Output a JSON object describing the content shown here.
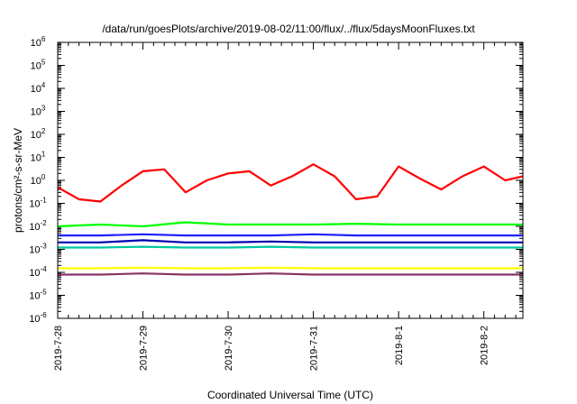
{
  "chart_data": {
    "type": "line",
    "title": "/data/run/goesPlots/archive/2019-08-02/11:00/flux/../flux/5daysMoonFluxes.txt",
    "xlabel": "Coordinated Universal Time (UTC)",
    "ylabel": "protons/cm²-s-sr-MeV",
    "yscale": "log",
    "ylim": [
      1e-06,
      1000000.0
    ],
    "y_tick_labels": [
      {
        "base": "10",
        "exp": "-6"
      },
      {
        "base": "10",
        "exp": "-5"
      },
      {
        "base": "10",
        "exp": "-4"
      },
      {
        "base": "10",
        "exp": "-3"
      },
      {
        "base": "10",
        "exp": "-2"
      },
      {
        "base": "10",
        "exp": "-1"
      },
      {
        "base": "10",
        "exp": "0"
      },
      {
        "base": "10",
        "exp": "1"
      },
      {
        "base": "10",
        "exp": "2"
      },
      {
        "base": "10",
        "exp": "3"
      },
      {
        "base": "10",
        "exp": "4"
      },
      {
        "base": "10",
        "exp": "5"
      },
      {
        "base": "10",
        "exp": "6"
      }
    ],
    "x_tick_labels": [
      "2019-7-28",
      "2019-7-29",
      "2019-7-30",
      "2019-7-31",
      "2019-8-1",
      "2019-8-2"
    ],
    "xlim": [
      "2019-07-28 00:00",
      "2019-08-02 11:00"
    ],
    "grid": false,
    "legend": "none",
    "series": [
      {
        "color": "#ff0000",
        "x": [
          "2019-07-28 00:00",
          "2019-07-28 06:00",
          "2019-07-28 12:00",
          "2019-07-28 18:00",
          "2019-07-29 00:00",
          "2019-07-29 06:00",
          "2019-07-29 12:00",
          "2019-07-29 18:00",
          "2019-07-30 00:00",
          "2019-07-30 06:00",
          "2019-07-30 12:00",
          "2019-07-30 18:00",
          "2019-07-31 00:00",
          "2019-07-31 06:00",
          "2019-07-31 12:00",
          "2019-07-31 18:00",
          "2019-08-01 00:00",
          "2019-08-01 06:00",
          "2019-08-01 12:00",
          "2019-08-01 18:00",
          "2019-08-02 00:00",
          "2019-08-02 06:00",
          "2019-08-02 11:00"
        ],
        "y": [
          0.5,
          0.15,
          0.12,
          0.6,
          2.5,
          3.0,
          0.3,
          1.0,
          2.0,
          2.5,
          0.6,
          1.5,
          5.0,
          1.5,
          0.15,
          0.2,
          4.0,
          1.2,
          0.4,
          1.5,
          4.0,
          1.0,
          1.5
        ]
      },
      {
        "color": "#00ff00",
        "x": [
          "2019-07-28 00:00",
          "2019-07-28 12:00",
          "2019-07-29 00:00",
          "2019-07-29 12:00",
          "2019-07-30 00:00",
          "2019-07-30 12:00",
          "2019-07-31 00:00",
          "2019-07-31 12:00",
          "2019-08-01 00:00",
          "2019-08-01 12:00",
          "2019-08-02 00:00",
          "2019-08-02 11:00"
        ],
        "y": [
          0.01,
          0.012,
          0.01,
          0.015,
          0.012,
          0.012,
          0.012,
          0.013,
          0.012,
          0.012,
          0.012,
          0.012
        ]
      },
      {
        "color": "#00c8a0",
        "x": [
          "2019-07-28 00:00",
          "2019-07-28 12:00",
          "2019-07-29 00:00",
          "2019-07-29 12:00",
          "2019-07-30 00:00",
          "2019-07-30 12:00",
          "2019-07-31 00:00",
          "2019-07-31 12:00",
          "2019-08-01 00:00",
          "2019-08-01 12:00",
          "2019-08-02 00:00",
          "2019-08-02 11:00"
        ],
        "y": [
          0.0012,
          0.0012,
          0.0013,
          0.0012,
          0.0012,
          0.0013,
          0.0012,
          0.0012,
          0.0012,
          0.0012,
          0.0012,
          0.0012
        ]
      },
      {
        "color": "#2020ff",
        "x": [
          "2019-07-28 00:00",
          "2019-07-28 12:00",
          "2019-07-29 00:00",
          "2019-07-29 12:00",
          "2019-07-30 00:00",
          "2019-07-30 12:00",
          "2019-07-31 00:00",
          "2019-07-31 12:00",
          "2019-08-01 00:00",
          "2019-08-01 12:00",
          "2019-08-02 00:00",
          "2019-08-02 11:00"
        ],
        "y": [
          0.004,
          0.004,
          0.0045,
          0.004,
          0.004,
          0.004,
          0.0045,
          0.004,
          0.004,
          0.004,
          0.004,
          0.004
        ]
      },
      {
        "color": "#0000b0",
        "x": [
          "2019-07-28 00:00",
          "2019-07-28 12:00",
          "2019-07-29 00:00",
          "2019-07-29 12:00",
          "2019-07-30 00:00",
          "2019-07-30 12:00",
          "2019-07-31 00:00",
          "2019-07-31 12:00",
          "2019-08-01 00:00",
          "2019-08-01 12:00",
          "2019-08-02 00:00",
          "2019-08-02 11:00"
        ],
        "y": [
          0.002,
          0.002,
          0.0025,
          0.002,
          0.002,
          0.0022,
          0.002,
          0.002,
          0.002,
          0.002,
          0.002,
          0.002
        ]
      },
      {
        "color": "#ffff00",
        "x": [
          "2019-07-28 00:00",
          "2019-07-28 12:00",
          "2019-07-29 00:00",
          "2019-07-29 12:00",
          "2019-07-30 00:00",
          "2019-07-30 12:00",
          "2019-07-31 00:00",
          "2019-07-31 12:00",
          "2019-08-01 00:00",
          "2019-08-01 12:00",
          "2019-08-02 00:00",
          "2019-08-02 11:00"
        ],
        "y": [
          0.00015,
          0.00015,
          0.00016,
          0.00015,
          0.00015,
          0.00016,
          0.00015,
          0.00015,
          0.00015,
          0.00015,
          0.00015,
          0.00015
        ]
      },
      {
        "color": "#883366",
        "x": [
          "2019-07-28 00:00",
          "2019-07-28 12:00",
          "2019-07-29 00:00",
          "2019-07-29 12:00",
          "2019-07-30 00:00",
          "2019-07-30 12:00",
          "2019-07-31 00:00",
          "2019-07-31 12:00",
          "2019-08-01 00:00",
          "2019-08-01 12:00",
          "2019-08-02 00:00",
          "2019-08-02 11:00"
        ],
        "y": [
          8e-05,
          8e-05,
          9e-05,
          8e-05,
          8e-05,
          9e-05,
          8e-05,
          8e-05,
          8e-05,
          8e-05,
          8e-05,
          8e-05
        ]
      }
    ]
  }
}
